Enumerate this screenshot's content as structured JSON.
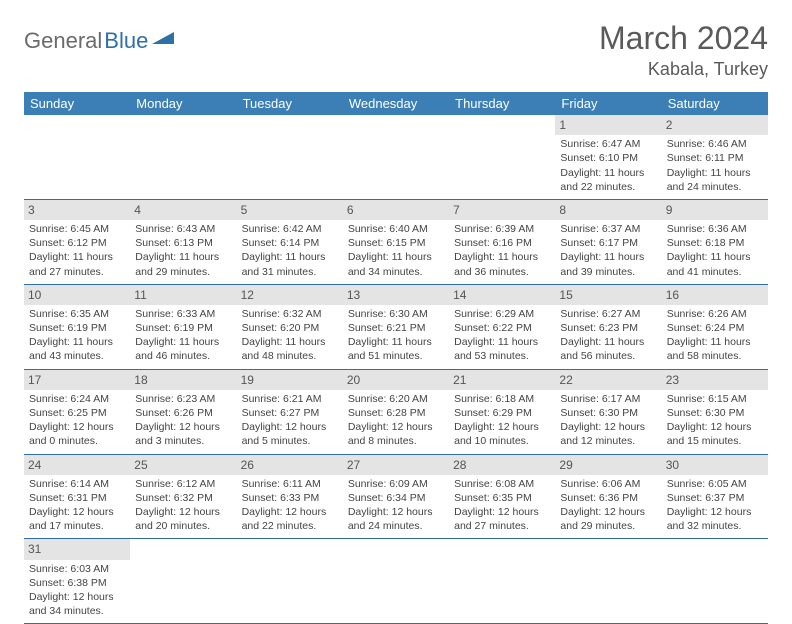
{
  "logo": {
    "text1": "General",
    "text2": "Blue"
  },
  "title": "March 2024",
  "location": "Kabala, Turkey",
  "colors": {
    "header_bg": "#3b7fb6",
    "header_text": "#ffffff",
    "daynum_bg": "#e4e4e4",
    "border": "#2f6fa8",
    "body_text": "#444444",
    "logo_gray": "#6b6b6b",
    "logo_blue": "#2f6fa8"
  },
  "weekdays": [
    "Sunday",
    "Monday",
    "Tuesday",
    "Wednesday",
    "Thursday",
    "Friday",
    "Saturday"
  ],
  "weeks": [
    [
      {
        "day": "",
        "sunrise": "",
        "sunset": "",
        "daylight": ""
      },
      {
        "day": "",
        "sunrise": "",
        "sunset": "",
        "daylight": ""
      },
      {
        "day": "",
        "sunrise": "",
        "sunset": "",
        "daylight": ""
      },
      {
        "day": "",
        "sunrise": "",
        "sunset": "",
        "daylight": ""
      },
      {
        "day": "",
        "sunrise": "",
        "sunset": "",
        "daylight": ""
      },
      {
        "day": "1",
        "sunrise": "Sunrise: 6:47 AM",
        "sunset": "Sunset: 6:10 PM",
        "daylight": "Daylight: 11 hours and 22 minutes."
      },
      {
        "day": "2",
        "sunrise": "Sunrise: 6:46 AM",
        "sunset": "Sunset: 6:11 PM",
        "daylight": "Daylight: 11 hours and 24 minutes."
      }
    ],
    [
      {
        "day": "3",
        "sunrise": "Sunrise: 6:45 AM",
        "sunset": "Sunset: 6:12 PM",
        "daylight": "Daylight: 11 hours and 27 minutes."
      },
      {
        "day": "4",
        "sunrise": "Sunrise: 6:43 AM",
        "sunset": "Sunset: 6:13 PM",
        "daylight": "Daylight: 11 hours and 29 minutes."
      },
      {
        "day": "5",
        "sunrise": "Sunrise: 6:42 AM",
        "sunset": "Sunset: 6:14 PM",
        "daylight": "Daylight: 11 hours and 31 minutes."
      },
      {
        "day": "6",
        "sunrise": "Sunrise: 6:40 AM",
        "sunset": "Sunset: 6:15 PM",
        "daylight": "Daylight: 11 hours and 34 minutes."
      },
      {
        "day": "7",
        "sunrise": "Sunrise: 6:39 AM",
        "sunset": "Sunset: 6:16 PM",
        "daylight": "Daylight: 11 hours and 36 minutes."
      },
      {
        "day": "8",
        "sunrise": "Sunrise: 6:37 AM",
        "sunset": "Sunset: 6:17 PM",
        "daylight": "Daylight: 11 hours and 39 minutes."
      },
      {
        "day": "9",
        "sunrise": "Sunrise: 6:36 AM",
        "sunset": "Sunset: 6:18 PM",
        "daylight": "Daylight: 11 hours and 41 minutes."
      }
    ],
    [
      {
        "day": "10",
        "sunrise": "Sunrise: 6:35 AM",
        "sunset": "Sunset: 6:19 PM",
        "daylight": "Daylight: 11 hours and 43 minutes."
      },
      {
        "day": "11",
        "sunrise": "Sunrise: 6:33 AM",
        "sunset": "Sunset: 6:19 PM",
        "daylight": "Daylight: 11 hours and 46 minutes."
      },
      {
        "day": "12",
        "sunrise": "Sunrise: 6:32 AM",
        "sunset": "Sunset: 6:20 PM",
        "daylight": "Daylight: 11 hours and 48 minutes."
      },
      {
        "day": "13",
        "sunrise": "Sunrise: 6:30 AM",
        "sunset": "Sunset: 6:21 PM",
        "daylight": "Daylight: 11 hours and 51 minutes."
      },
      {
        "day": "14",
        "sunrise": "Sunrise: 6:29 AM",
        "sunset": "Sunset: 6:22 PM",
        "daylight": "Daylight: 11 hours and 53 minutes."
      },
      {
        "day": "15",
        "sunrise": "Sunrise: 6:27 AM",
        "sunset": "Sunset: 6:23 PM",
        "daylight": "Daylight: 11 hours and 56 minutes."
      },
      {
        "day": "16",
        "sunrise": "Sunrise: 6:26 AM",
        "sunset": "Sunset: 6:24 PM",
        "daylight": "Daylight: 11 hours and 58 minutes."
      }
    ],
    [
      {
        "day": "17",
        "sunrise": "Sunrise: 6:24 AM",
        "sunset": "Sunset: 6:25 PM",
        "daylight": "Daylight: 12 hours and 0 minutes."
      },
      {
        "day": "18",
        "sunrise": "Sunrise: 6:23 AM",
        "sunset": "Sunset: 6:26 PM",
        "daylight": "Daylight: 12 hours and 3 minutes."
      },
      {
        "day": "19",
        "sunrise": "Sunrise: 6:21 AM",
        "sunset": "Sunset: 6:27 PM",
        "daylight": "Daylight: 12 hours and 5 minutes."
      },
      {
        "day": "20",
        "sunrise": "Sunrise: 6:20 AM",
        "sunset": "Sunset: 6:28 PM",
        "daylight": "Daylight: 12 hours and 8 minutes."
      },
      {
        "day": "21",
        "sunrise": "Sunrise: 6:18 AM",
        "sunset": "Sunset: 6:29 PM",
        "daylight": "Daylight: 12 hours and 10 minutes."
      },
      {
        "day": "22",
        "sunrise": "Sunrise: 6:17 AM",
        "sunset": "Sunset: 6:30 PM",
        "daylight": "Daylight: 12 hours and 12 minutes."
      },
      {
        "day": "23",
        "sunrise": "Sunrise: 6:15 AM",
        "sunset": "Sunset: 6:30 PM",
        "daylight": "Daylight: 12 hours and 15 minutes."
      }
    ],
    [
      {
        "day": "24",
        "sunrise": "Sunrise: 6:14 AM",
        "sunset": "Sunset: 6:31 PM",
        "daylight": "Daylight: 12 hours and 17 minutes."
      },
      {
        "day": "25",
        "sunrise": "Sunrise: 6:12 AM",
        "sunset": "Sunset: 6:32 PM",
        "daylight": "Daylight: 12 hours and 20 minutes."
      },
      {
        "day": "26",
        "sunrise": "Sunrise: 6:11 AM",
        "sunset": "Sunset: 6:33 PM",
        "daylight": "Daylight: 12 hours and 22 minutes."
      },
      {
        "day": "27",
        "sunrise": "Sunrise: 6:09 AM",
        "sunset": "Sunset: 6:34 PM",
        "daylight": "Daylight: 12 hours and 24 minutes."
      },
      {
        "day": "28",
        "sunrise": "Sunrise: 6:08 AM",
        "sunset": "Sunset: 6:35 PM",
        "daylight": "Daylight: 12 hours and 27 minutes."
      },
      {
        "day": "29",
        "sunrise": "Sunrise: 6:06 AM",
        "sunset": "Sunset: 6:36 PM",
        "daylight": "Daylight: 12 hours and 29 minutes."
      },
      {
        "day": "30",
        "sunrise": "Sunrise: 6:05 AM",
        "sunset": "Sunset: 6:37 PM",
        "daylight": "Daylight: 12 hours and 32 minutes."
      }
    ],
    [
      {
        "day": "31",
        "sunrise": "Sunrise: 6:03 AM",
        "sunset": "Sunset: 6:38 PM",
        "daylight": "Daylight: 12 hours and 34 minutes."
      },
      {
        "day": "",
        "sunrise": "",
        "sunset": "",
        "daylight": ""
      },
      {
        "day": "",
        "sunrise": "",
        "sunset": "",
        "daylight": ""
      },
      {
        "day": "",
        "sunrise": "",
        "sunset": "",
        "daylight": ""
      },
      {
        "day": "",
        "sunrise": "",
        "sunset": "",
        "daylight": ""
      },
      {
        "day": "",
        "sunrise": "",
        "sunset": "",
        "daylight": ""
      },
      {
        "day": "",
        "sunrise": "",
        "sunset": "",
        "daylight": ""
      }
    ]
  ]
}
